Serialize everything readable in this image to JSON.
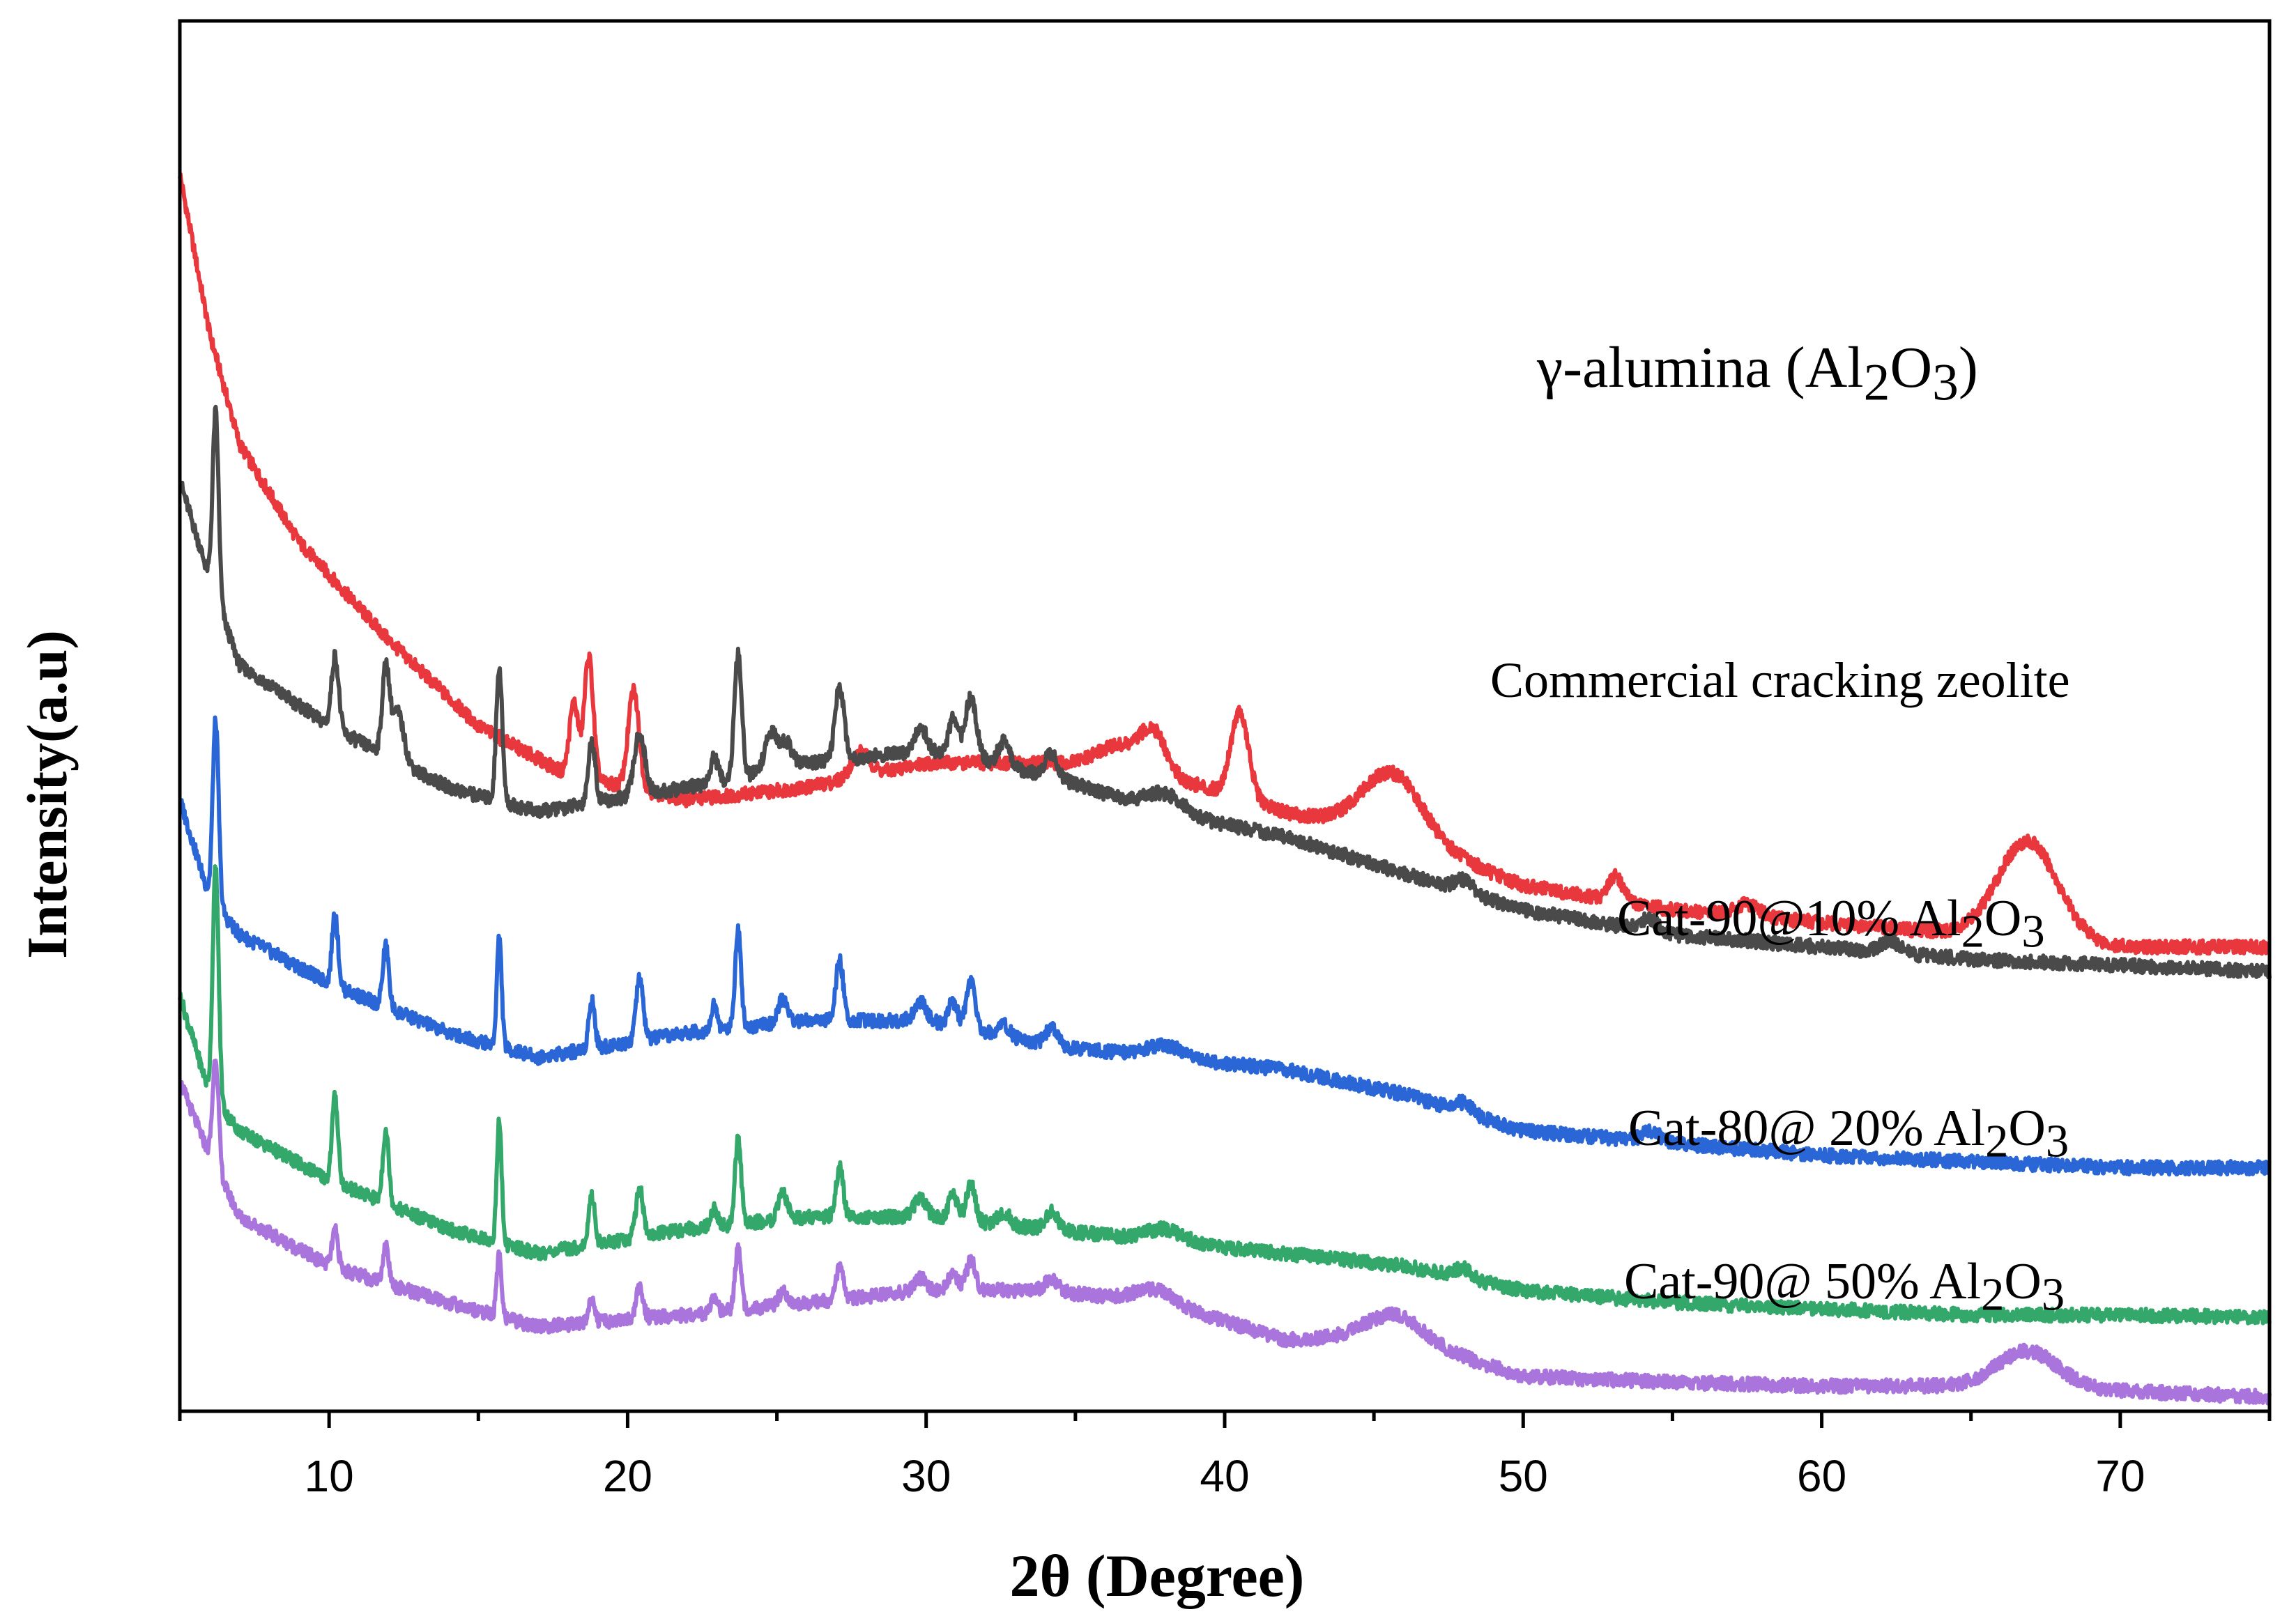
{
  "chart_data": {
    "type": "line",
    "title": "",
    "xlabel": "2θ (Degree)",
    "ylabel": "Intensity(a.u)",
    "xlim": [
      5,
      75
    ],
    "xticks": [
      10,
      20,
      30,
      40,
      50,
      60,
      70
    ],
    "grid": false,
    "series": [
      {
        "name": "γ-alumina (Al2O3)",
        "label_text": "γ-alumina (Al",
        "label_sub1": "2",
        "label_mid": "O",
        "label_sub2": "3",
        "label_end": ")",
        "color": "#e8383d",
        "baseline": [
          [
            5,
            100
          ],
          [
            6,
            87
          ],
          [
            7,
            78
          ],
          [
            9,
            70
          ],
          [
            12,
            62
          ],
          [
            15,
            55
          ],
          [
            18,
            51
          ],
          [
            22,
            49
          ],
          [
            26,
            50
          ],
          [
            30,
            52
          ],
          [
            34,
            52
          ],
          [
            38,
            51
          ],
          [
            42,
            48
          ],
          [
            46,
            46
          ],
          [
            50,
            42
          ],
          [
            55,
            40
          ],
          [
            60,
            39
          ],
          [
            65,
            38
          ],
          [
            70,
            37
          ],
          [
            75,
            37
          ]
        ],
        "peaks": [
          [
            18.2,
            6,
            0.15
          ],
          [
            18.7,
            10,
            0.15
          ],
          [
            20.2,
            8,
            0.18
          ],
          [
            27.8,
            2,
            0.3
          ],
          [
            36.5,
            2,
            0.8
          ],
          [
            37.6,
            3,
            0.4
          ],
          [
            40.5,
            7,
            0.3
          ],
          [
            45.6,
            5,
            1.0
          ],
          [
            53.1,
            2,
            0.25
          ],
          [
            57.5,
            1,
            0.4
          ],
          [
            66.9,
            8,
            1.0
          ]
        ]
      },
      {
        "name": "Commercial cracking zeolite",
        "label_text": "Commercial cracking zeolite",
        "color": "#4a4a4a",
        "baseline": [
          [
            5,
            75
          ],
          [
            6,
            67
          ],
          [
            7,
            60
          ],
          [
            10,
            55
          ],
          [
            14,
            50
          ],
          [
            17,
            48
          ],
          [
            22,
            50
          ],
          [
            26,
            52
          ],
          [
            30,
            53
          ],
          [
            34,
            51
          ],
          [
            38,
            48
          ],
          [
            42,
            46
          ],
          [
            46,
            43
          ],
          [
            50,
            40
          ],
          [
            55,
            38
          ],
          [
            60,
            37
          ],
          [
            65,
            36
          ],
          [
            70,
            35.5
          ],
          [
            75,
            35
          ]
        ],
        "peaks": [
          [
            6.2,
            15,
            0.1
          ],
          [
            10.2,
            6,
            0.12
          ],
          [
            11.9,
            7,
            0.12
          ],
          [
            12.3,
            4,
            0.2
          ],
          [
            15.7,
            11,
            0.1
          ],
          [
            18.8,
            5,
            0.12
          ],
          [
            20.4,
            5,
            0.18
          ],
          [
            22.9,
            2,
            0.12
          ],
          [
            23.7,
            10,
            0.12
          ],
          [
            24.8,
            3,
            0.2
          ],
          [
            25.3,
            2,
            0.2
          ],
          [
            27.1,
            6,
            0.15
          ],
          [
            29.8,
            2,
            0.2
          ],
          [
            30.9,
            3,
            0.15
          ],
          [
            31.5,
            5,
            0.2
          ],
          [
            32.6,
            2,
            0.2
          ],
          [
            34.2,
            2,
            0.2
          ],
          [
            38,
            1.5,
            0.6
          ],
          [
            48,
            1,
            0.3
          ],
          [
            54.2,
            1,
            0.3
          ],
          [
            62.3,
            1,
            0.3
          ]
        ]
      },
      {
        "name": "Cat-90@10% Al2O3",
        "label_text": "Cat-90@10% Al",
        "label_sub1": "2",
        "label_mid": "O",
        "label_sub2": "3",
        "color": "#2a66d6",
        "baseline": [
          [
            5,
            49
          ],
          [
            6,
            41
          ],
          [
            7,
            38
          ],
          [
            10,
            34
          ],
          [
            14,
            30
          ],
          [
            17,
            28
          ],
          [
            22,
            30
          ],
          [
            26,
            31
          ],
          [
            30,
            31
          ],
          [
            34,
            29
          ],
          [
            38,
            28
          ],
          [
            42,
            27
          ],
          [
            46,
            25
          ],
          [
            50,
            22
          ],
          [
            55,
            21
          ],
          [
            60,
            20
          ],
          [
            65,
            19.5
          ],
          [
            70,
            19
          ],
          [
            75,
            19
          ]
        ],
        "peaks": [
          [
            6.2,
            15,
            0.1
          ],
          [
            10.2,
            6,
            0.1
          ],
          [
            11.9,
            5,
            0.1
          ],
          [
            15.7,
            9,
            0.08
          ],
          [
            18.8,
            4,
            0.1
          ],
          [
            20.4,
            5,
            0.12
          ],
          [
            22.9,
            2,
            0.1
          ],
          [
            23.7,
            8,
            0.1
          ],
          [
            25.2,
            2,
            0.15
          ],
          [
            27.1,
            5,
            0.12
          ],
          [
            29.8,
            1.5,
            0.2
          ],
          [
            30.9,
            2,
            0.15
          ],
          [
            31.5,
            4,
            0.15
          ],
          [
            32.6,
            1,
            0.2
          ],
          [
            34.2,
            1.5,
            0.2
          ],
          [
            38,
            1,
            0.6
          ],
          [
            48,
            0.8,
            0.3
          ],
          [
            54.3,
            0.8,
            0.3
          ]
        ]
      },
      {
        "name": "Cat-80@ 20% Al2O3",
        "label_text": "Cat-80@ 20% Al",
        "label_sub1": "2",
        "label_mid": "O",
        "label_sub2": "3",
        "color": "#33a86a",
        "baseline": [
          [
            5,
            33
          ],
          [
            6,
            25
          ],
          [
            7,
            22
          ],
          [
            10,
            18
          ],
          [
            14,
            14
          ],
          [
            17,
            12
          ],
          [
            22,
            14
          ],
          [
            26,
            15
          ],
          [
            30,
            15
          ],
          [
            34,
            14
          ],
          [
            38,
            13
          ],
          [
            42,
            12
          ],
          [
            46,
            11
          ],
          [
            50,
            9
          ],
          [
            55,
            8
          ],
          [
            60,
            7.5
          ],
          [
            65,
            7
          ],
          [
            70,
            7
          ],
          [
            75,
            6.8
          ]
        ],
        "peaks": [
          [
            6.2,
            19,
            0.1
          ],
          [
            10.2,
            7,
            0.1
          ],
          [
            11.9,
            6,
            0.1
          ],
          [
            15.7,
            10,
            0.08
          ],
          [
            18.8,
            4,
            0.1
          ],
          [
            20.4,
            4,
            0.12
          ],
          [
            22.9,
            1.5,
            0.1
          ],
          [
            23.7,
            7,
            0.1
          ],
          [
            25.2,
            2,
            0.15
          ],
          [
            27.1,
            4,
            0.12
          ],
          [
            29.8,
            1.5,
            0.2
          ],
          [
            30.9,
            2,
            0.15
          ],
          [
            31.5,
            3,
            0.15
          ],
          [
            32.6,
            1,
            0.2
          ],
          [
            34.2,
            1.5,
            0.2
          ],
          [
            38,
            1,
            0.6
          ],
          [
            48,
            0.8,
            0.3
          ]
        ]
      },
      {
        "name": "Cat-90@ 50% Al2O3",
        "label_text": "Cat-90@ 50% Al",
        "label_sub1": "2",
        "label_mid": "O",
        "label_sub2": "3",
        "color": "#a974dc",
        "baseline": [
          [
            5,
            26
          ],
          [
            6,
            20
          ],
          [
            7,
            15
          ],
          [
            10,
            11
          ],
          [
            14,
            8
          ],
          [
            17,
            6
          ],
          [
            22,
            7
          ],
          [
            26,
            8
          ],
          [
            30,
            9
          ],
          [
            34,
            9
          ],
          [
            38,
            8
          ],
          [
            42,
            5
          ],
          [
            46,
            5
          ],
          [
            50,
            2
          ],
          [
            55,
            1.5
          ],
          [
            60,
            1.2
          ],
          [
            65,
            1.2
          ],
          [
            70,
            0.8
          ],
          [
            75,
            0.3
          ]
        ],
        "peaks": [
          [
            6.2,
            9,
            0.1
          ],
          [
            10.2,
            3,
            0.1
          ],
          [
            11.9,
            3,
            0.1
          ],
          [
            15.7,
            5,
            0.08
          ],
          [
            18.8,
            2,
            0.1
          ],
          [
            20.4,
            2.5,
            0.12
          ],
          [
            22.9,
            1,
            0.1
          ],
          [
            23.7,
            5,
            0.1
          ],
          [
            25.2,
            1,
            0.15
          ],
          [
            27.1,
            2.5,
            0.12
          ],
          [
            29.8,
            1,
            0.2
          ],
          [
            30.9,
            1.5,
            0.15
          ],
          [
            31.5,
            2.5,
            0.15
          ],
          [
            34.2,
            1,
            0.2
          ],
          [
            37.6,
            1,
            0.6
          ],
          [
            45.6,
            2,
            1.0
          ],
          [
            66.9,
            3,
            1.0
          ]
        ]
      }
    ]
  }
}
